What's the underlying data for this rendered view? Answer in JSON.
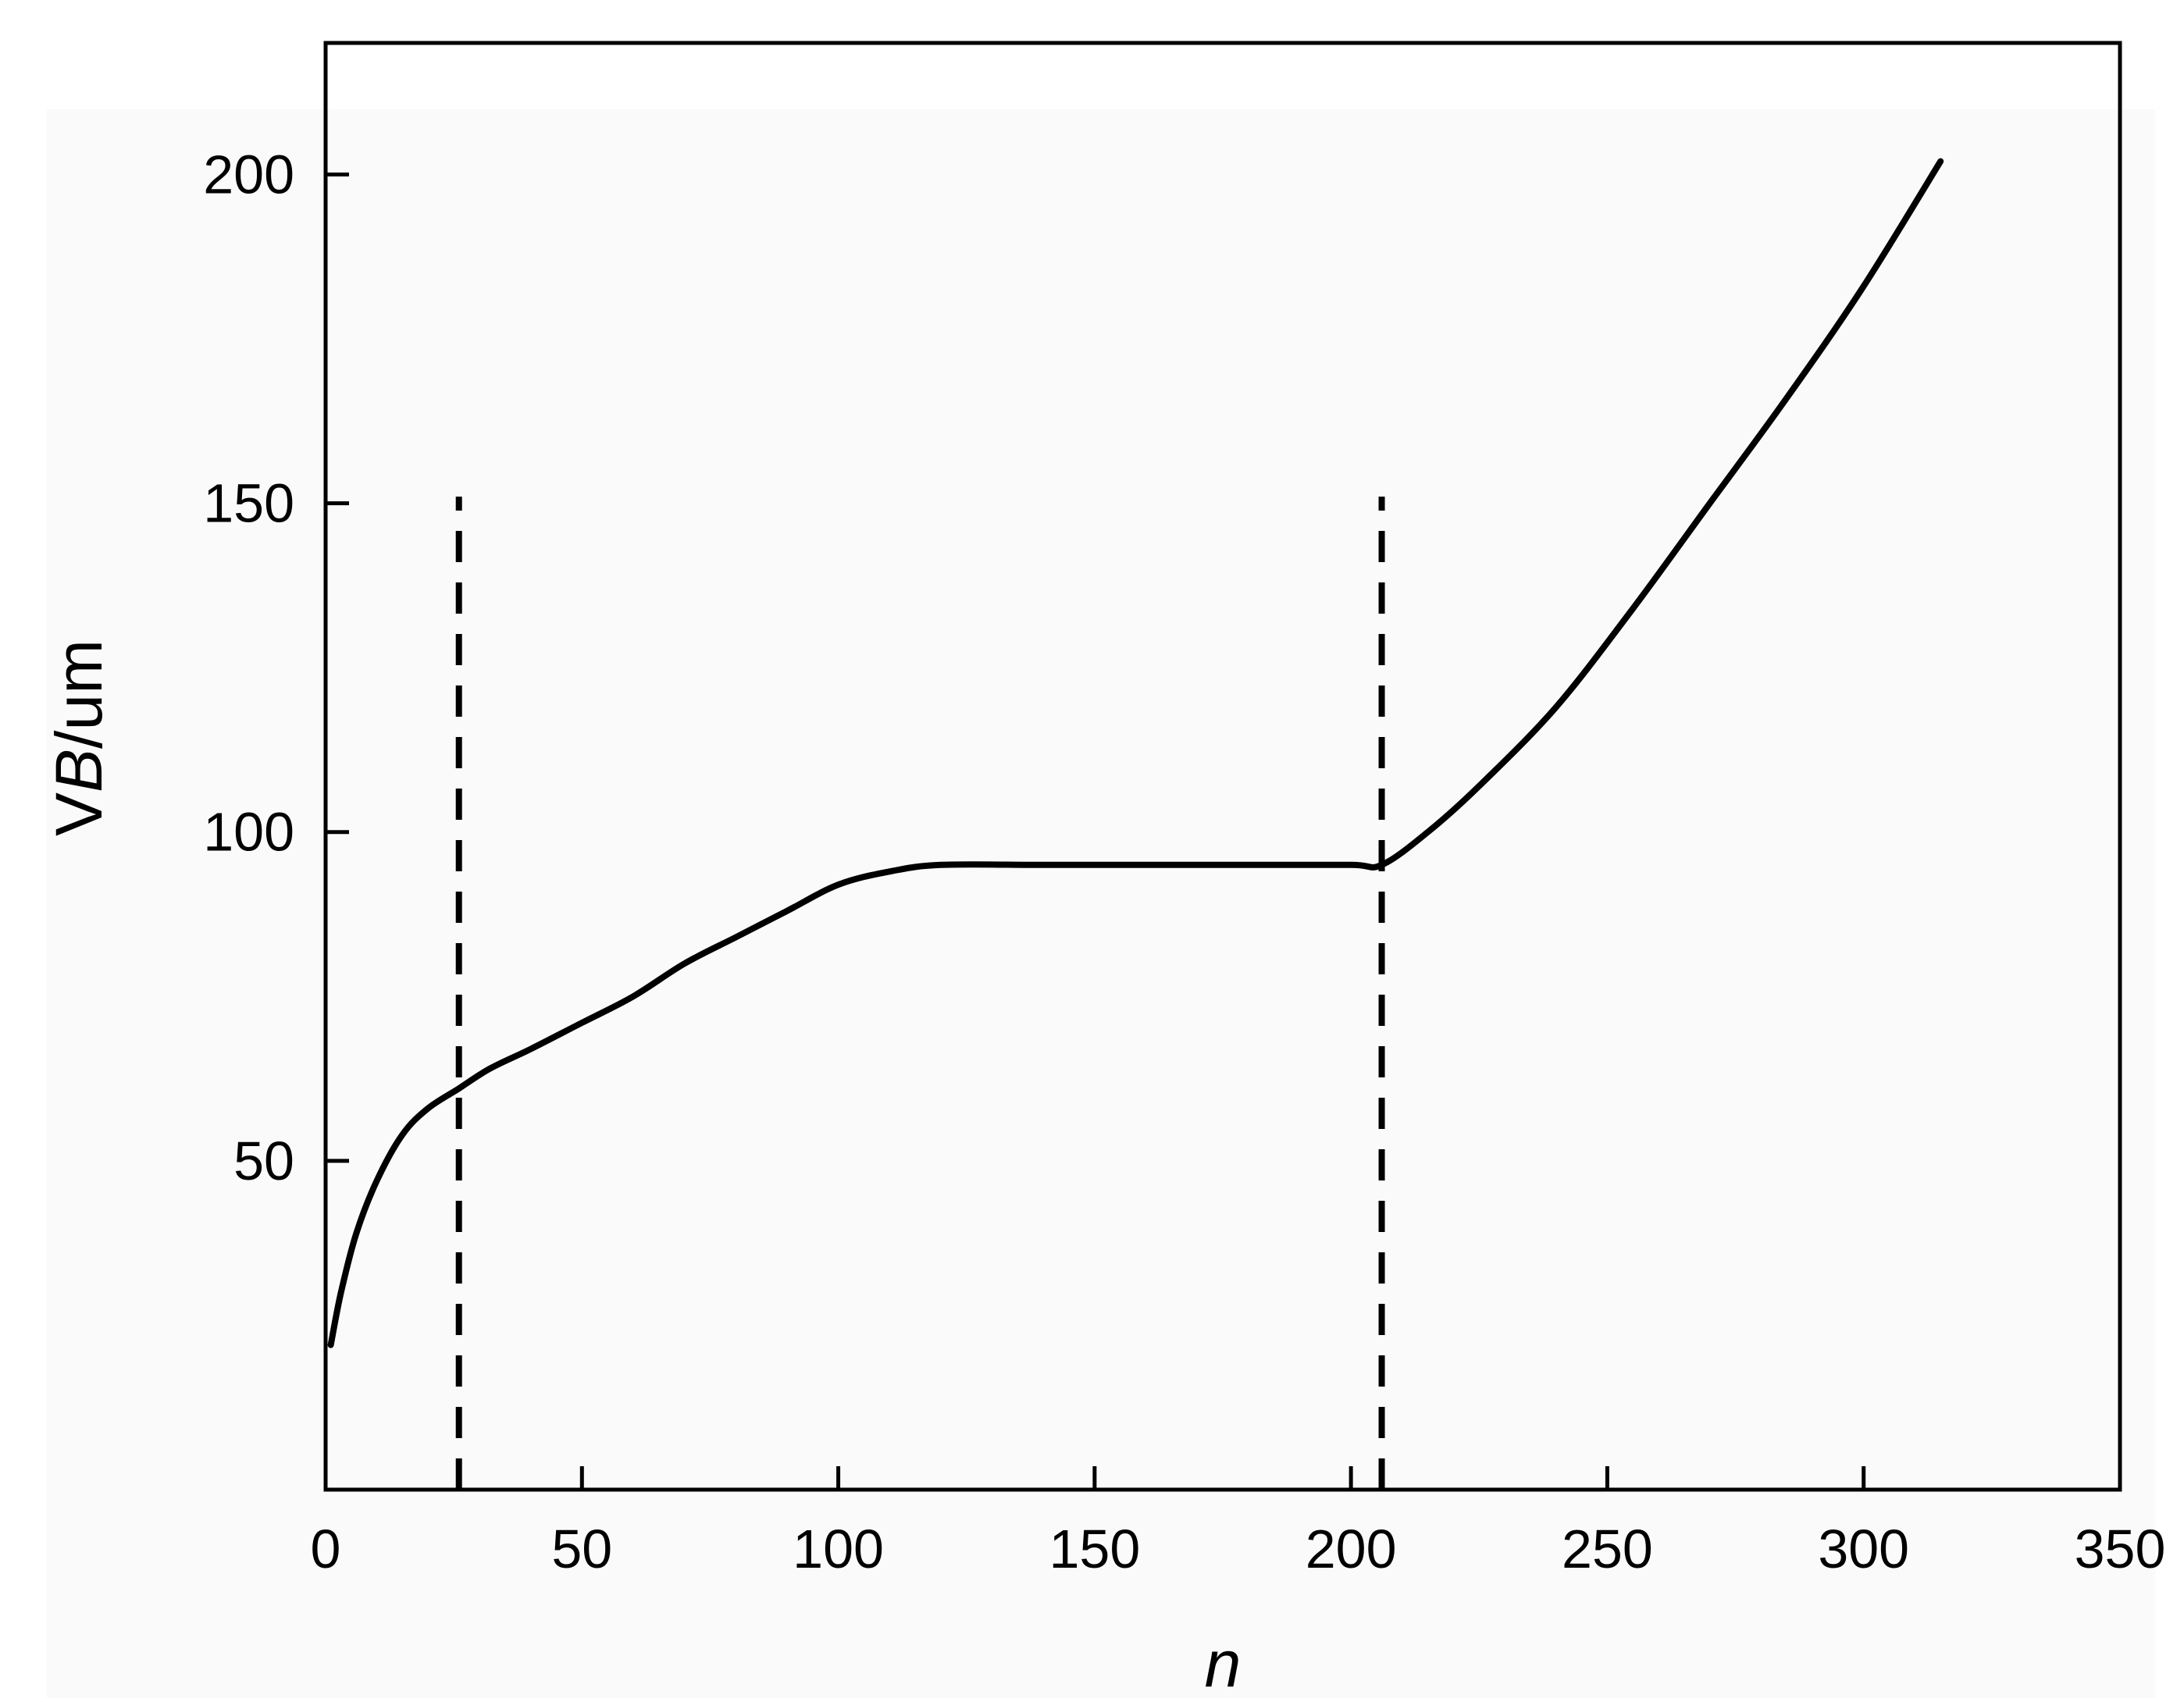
{
  "chart_data": {
    "type": "line",
    "title": "",
    "xlabel": "n",
    "ylabel_parts": [
      "V",
      "B",
      "/um"
    ],
    "ylabel": "VB/um",
    "xlim": [
      0,
      350
    ],
    "ylim": [
      0,
      220
    ],
    "x_ticks": [
      0,
      50,
      100,
      150,
      200,
      250,
      300,
      350
    ],
    "x_tick_labels": [
      "0",
      "50",
      "100",
      "150",
      "200",
      "250",
      "300",
      "350"
    ],
    "y_ticks": [
      50,
      100,
      150,
      200
    ],
    "y_tick_labels": [
      "50",
      "100",
      "150",
      "200"
    ],
    "grid": false,
    "legend": "none",
    "colors": {
      "line": "#000000",
      "background": "#fafafa",
      "axes": "#000000"
    },
    "series": [
      {
        "style": "solid",
        "x": [
          1,
          3,
          6,
          10,
          15,
          20,
          26,
          32,
          40,
          50,
          60,
          70,
          80,
          90,
          100,
          110,
          120,
          140,
          160,
          180,
          200,
          206,
          215,
          225,
          240,
          255,
          270,
          285,
          300,
          315
        ],
        "y": [
          22,
          30,
          39,
          47,
          54,
          58,
          61,
          64,
          67,
          71,
          75,
          80,
          84,
          88,
          92,
          94,
          95,
          95,
          95,
          95,
          95,
          95,
          100,
          107,
          119,
          134,
          150,
          166,
          183,
          202
        ]
      }
    ],
    "reference_lines": [
      {
        "style": "dashed",
        "x": 26,
        "y_range": [
          0,
          151
        ]
      },
      {
        "style": "dashed",
        "x": 206,
        "y_range": [
          0,
          151
        ]
      }
    ]
  }
}
